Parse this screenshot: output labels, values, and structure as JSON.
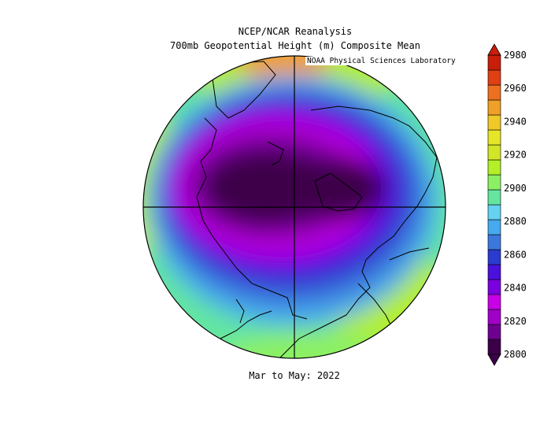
{
  "title_line1": "NCEP/NCAR Reanalysis",
  "title_line2": "700mb Geopotential Height (m) Composite Mean",
  "credit": "NOAA Physical Sciences Laboratory",
  "period": "Mar to May: 2022",
  "projection": "north-polar-stereographic",
  "colorbar": {
    "levels": [
      2800,
      2820,
      2840,
      2860,
      2880,
      2900,
      2920,
      2940,
      2960,
      2980
    ],
    "tick_labels": [
      "2800",
      "2820",
      "2840",
      "2860",
      "2880",
      "2900",
      "2920",
      "2940",
      "2960",
      "2980"
    ],
    "colors": [
      "#3c0048",
      "#6e0090",
      "#a000c8",
      "#c800e6",
      "#7a00e0",
      "#4a10dc",
      "#2a3ccf",
      "#3c78dc",
      "#46aaee",
      "#64d2f0",
      "#64e6a0",
      "#8cf064",
      "#b4ef28",
      "#d2e628",
      "#e6e628",
      "#f0c828",
      "#f0a028",
      "#ec7020",
      "#e04014",
      "#c81e0a"
    ]
  }
}
